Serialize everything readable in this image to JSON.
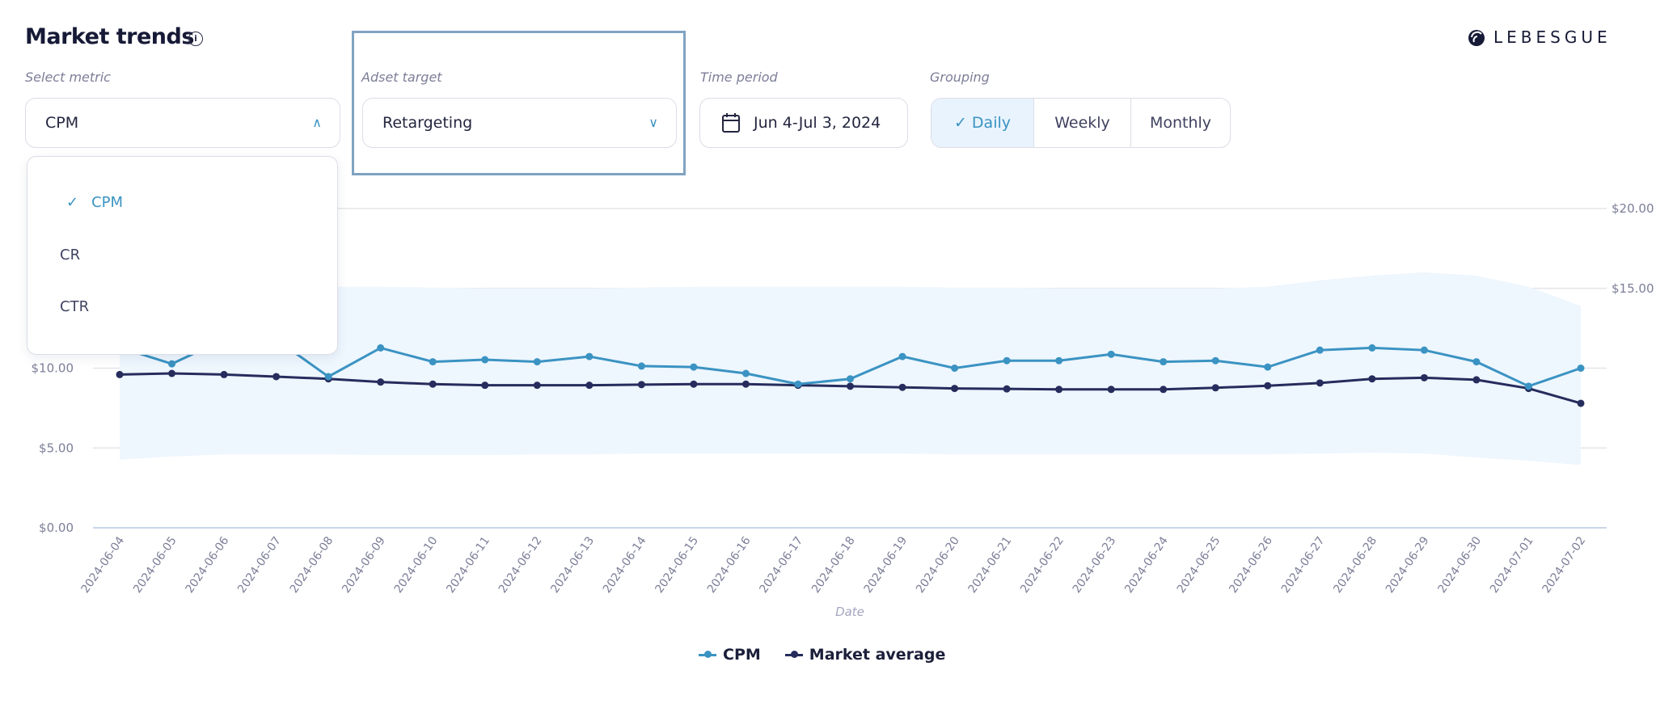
{
  "header": {
    "title": "Market trends",
    "info_icon": "info-icon",
    "logo_text": "LEBESGUE"
  },
  "filters": {
    "metric": {
      "label": "Select metric",
      "value": "CPM",
      "options": [
        "CPM",
        "CR",
        "CTR"
      ],
      "selected": "CPM"
    },
    "adset": {
      "label": "Adset target",
      "value": "Retargeting"
    },
    "period": {
      "label": "Time period",
      "value": "Jun 4-Jul 3, 2024"
    },
    "grouping": {
      "label": "Grouping",
      "options": [
        "Daily",
        "Weekly",
        "Monthly"
      ],
      "selected": "Daily"
    }
  },
  "colors": {
    "cpm": "#3a93c2",
    "market": "#262c5c",
    "band": "#eef6fe",
    "accent": "#3a93c2"
  },
  "chart_data": {
    "type": "line",
    "xlabel": "Date",
    "ylabel": "",
    "ylim": [
      0,
      20
    ],
    "yticks": [
      "$0.00",
      "$5.00",
      "$10.00",
      "$15.00",
      "$20.00"
    ],
    "ytick_values": [
      0,
      5,
      10,
      15,
      20
    ],
    "grid": true,
    "legend": "bottom",
    "x": [
      "2024-06-04",
      "2024-06-05",
      "2024-06-06",
      "2024-06-07",
      "2024-06-08",
      "2024-06-09",
      "2024-06-10",
      "2024-06-11",
      "2024-06-12",
      "2024-06-13",
      "2024-06-14",
      "2024-06-15",
      "2024-06-16",
      "2024-06-17",
      "2024-06-18",
      "2024-06-19",
      "2024-06-20",
      "2024-06-21",
      "2024-06-22",
      "2024-06-23",
      "2024-06-24",
      "2024-06-25",
      "2024-06-26",
      "2024-06-27",
      "2024-06-28",
      "2024-06-29",
      "2024-06-30",
      "2024-07-01",
      "2024-07-02"
    ],
    "series": [
      {
        "name": "CPM",
        "values": [
          11.3,
          10.27,
          11.8,
          11.8,
          9.47,
          11.27,
          10.4,
          10.53,
          10.4,
          10.73,
          10.13,
          10.07,
          9.67,
          9.0,
          9.33,
          10.73,
          10.0,
          10.47,
          10.47,
          10.87,
          10.4,
          10.47,
          10.07,
          11.13,
          11.27,
          11.13,
          10.4,
          8.87,
          10.0
        ]
      },
      {
        "name": "Market average",
        "values": [
          9.6,
          9.67,
          9.6,
          9.47,
          9.33,
          9.13,
          9.0,
          8.93,
          8.93,
          8.93,
          8.97,
          9.0,
          9.0,
          8.93,
          8.87,
          8.8,
          8.73,
          8.7,
          8.67,
          8.67,
          8.67,
          8.77,
          8.9,
          9.07,
          9.33,
          9.4,
          9.27,
          8.73,
          7.8
        ]
      }
    ],
    "band": {
      "upper": [
        15.27,
        15.2,
        15.1,
        15.1,
        15.1,
        15.1,
        15.05,
        15.0,
        15.0,
        15.0,
        15.05,
        15.1,
        15.1,
        15.1,
        15.1,
        15.1,
        15.05,
        15.05,
        15.0,
        15.0,
        15.0,
        15.0,
        15.1,
        15.5,
        15.8,
        16.0,
        15.8,
        15.1,
        13.9
      ],
      "lower": [
        4.27,
        4.47,
        4.6,
        4.6,
        4.6,
        4.55,
        4.55,
        4.55,
        4.6,
        4.6,
        4.65,
        4.65,
        4.65,
        4.65,
        4.65,
        4.65,
        4.6,
        4.6,
        4.6,
        4.6,
        4.6,
        4.6,
        4.6,
        4.65,
        4.7,
        4.65,
        4.4,
        4.2,
        3.93
      ]
    }
  }
}
